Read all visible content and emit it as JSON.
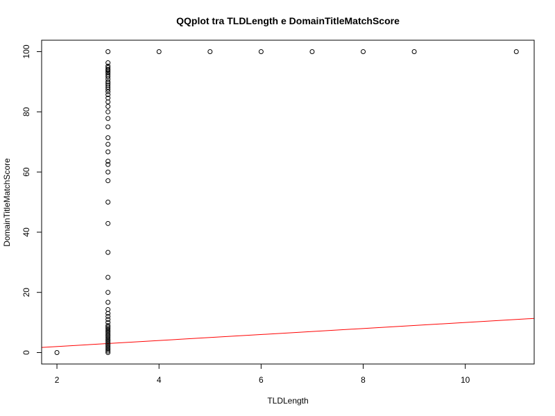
{
  "chart_data": {
    "type": "scatter",
    "title": "QQplot tra TLDLength e DomainTitleMatchScore",
    "xlabel": "TLDLength",
    "ylabel": "DomainTitleMatchScore",
    "xlim": [
      1.7,
      11.35
    ],
    "ylim": [
      -3.8,
      103.8
    ],
    "x_ticks": [
      2,
      4,
      6,
      8,
      10
    ],
    "y_ticks": [
      0,
      20,
      40,
      60,
      80,
      100
    ],
    "grid": false,
    "legend": "none",
    "series": [
      {
        "marker": "open-circle",
        "color": "#000000",
        "points": [
          [
            2,
            0
          ],
          [
            3,
            0
          ],
          [
            3,
            0.5
          ],
          [
            3,
            1
          ],
          [
            3,
            1.5
          ],
          [
            3,
            2
          ],
          [
            3,
            2.5
          ],
          [
            3,
            3
          ],
          [
            3,
            3.5
          ],
          [
            3,
            4
          ],
          [
            3,
            4.5
          ],
          [
            3,
            5
          ],
          [
            3,
            5.5
          ],
          [
            3,
            6
          ],
          [
            3,
            6.5
          ],
          [
            3,
            7
          ],
          [
            3,
            7.5
          ],
          [
            3,
            8
          ],
          [
            3,
            8.5
          ],
          [
            3,
            9
          ],
          [
            3,
            10
          ],
          [
            3,
            11
          ],
          [
            3,
            12
          ],
          [
            3,
            13
          ],
          [
            3,
            14.3
          ],
          [
            3,
            16.7
          ],
          [
            3,
            20
          ],
          [
            3,
            25
          ],
          [
            3,
            33.3
          ],
          [
            3,
            42.9
          ],
          [
            3,
            50
          ],
          [
            3,
            57.1
          ],
          [
            3,
            60
          ],
          [
            3,
            62.5
          ],
          [
            3,
            63.6
          ],
          [
            3,
            66.7
          ],
          [
            3,
            69.2
          ],
          [
            3,
            71.4
          ],
          [
            3,
            75
          ],
          [
            3,
            77.8
          ],
          [
            3,
            80
          ],
          [
            3,
            81.8
          ],
          [
            3,
            83.3
          ],
          [
            3,
            84.6
          ],
          [
            3,
            85.7
          ],
          [
            3,
            86.7
          ],
          [
            3,
            87.5
          ],
          [
            3,
            88.2
          ],
          [
            3,
            88.9
          ],
          [
            3,
            89.5
          ],
          [
            3,
            90
          ],
          [
            3,
            90.9
          ],
          [
            3,
            91.7
          ],
          [
            3,
            92.3
          ],
          [
            3,
            92.9
          ],
          [
            3,
            93.3
          ],
          [
            3,
            93.8
          ],
          [
            3,
            94.1
          ],
          [
            3,
            94.7
          ],
          [
            3,
            95.2
          ],
          [
            3,
            96.3
          ],
          [
            3,
            100
          ],
          [
            4,
            100
          ],
          [
            5,
            100
          ],
          [
            6,
            100
          ],
          [
            7,
            100
          ],
          [
            8,
            100
          ],
          [
            9,
            100
          ],
          [
            11,
            100
          ]
        ]
      }
    ],
    "reference_line": {
      "color": "#ff0000",
      "intercept": 0,
      "slope": 1
    }
  }
}
